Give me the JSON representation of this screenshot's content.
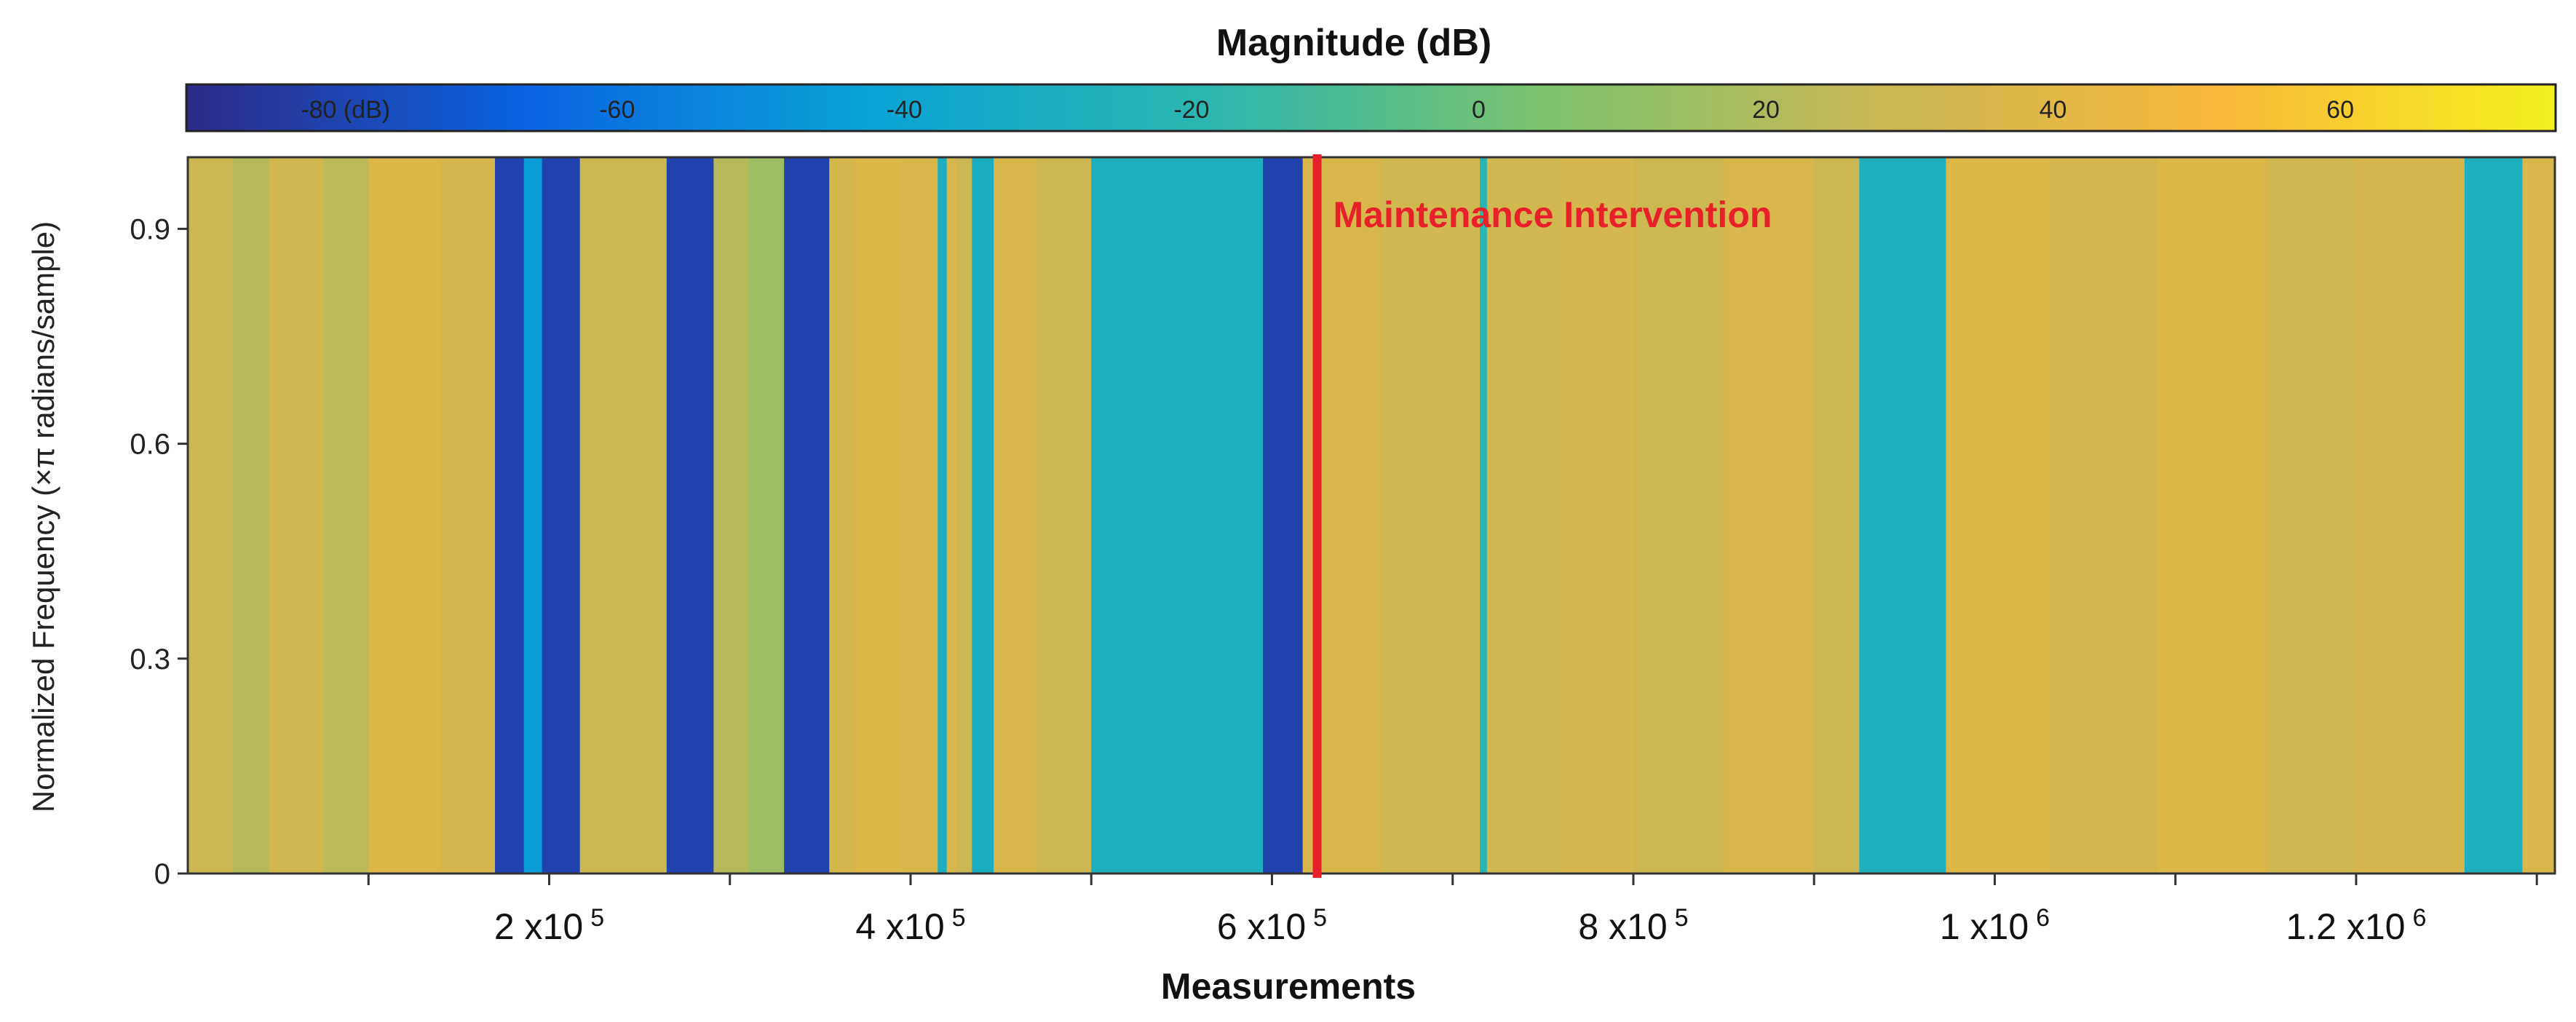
{
  "chart_data": {
    "type": "heatmap",
    "title": "Magnitude (dB)",
    "xlabel": "Measurements",
    "ylabel": "Normalized Frequency (×π radians/sample)",
    "xlim": [
      0,
      1310000
    ],
    "ylim": [
      0,
      1
    ],
    "colorbar": {
      "ticks": [
        {
          "value": -80,
          "label": "-80 (dB)"
        },
        {
          "value": -60,
          "label": "-60"
        },
        {
          "value": -40,
          "label": "-40"
        },
        {
          "value": -20,
          "label": "-20"
        },
        {
          "value": 0,
          "label": "0"
        },
        {
          "value": 20,
          "label": "20"
        },
        {
          "value": 40,
          "label": "40"
        },
        {
          "value": 60,
          "label": "60"
        }
      ],
      "range": [
        -90,
        75
      ],
      "colors": [
        "#2e2a86",
        "#0a63e3",
        "#0aa3d6",
        "#2ab6b0",
        "#7cc36e",
        "#c9b755",
        "#f9b83a",
        "#f5f11e"
      ]
    },
    "yticks": [
      {
        "value": 0,
        "label": "0"
      },
      {
        "value": 0.3,
        "label": "0.3"
      },
      {
        "value": 0.6,
        "label": "0.6"
      },
      {
        "value": 0.9,
        "label": "0.9"
      }
    ],
    "xticks_labeled": [
      {
        "value": 200000,
        "base": "2 x10",
        "exp": "5"
      },
      {
        "value": 400000,
        "base": "4 x10",
        "exp": "5"
      },
      {
        "value": 600000,
        "base": "6 x10",
        "exp": "5"
      },
      {
        "value": 800000,
        "base": "8 x10",
        "exp": "5"
      },
      {
        "value": 1000000,
        "base": "1 x10",
        "exp": "6"
      },
      {
        "value": 1200000,
        "base": "1.2 x10",
        "exp": "6"
      }
    ],
    "xticks_minor": [
      100000,
      300000,
      500000,
      700000,
      900000,
      1100000,
      1300000
    ],
    "bands": [
      {
        "x0": 0,
        "x1": 25000,
        "db": 30
      },
      {
        "x0": 25000,
        "x1": 45000,
        "db": 22
      },
      {
        "x0": 45000,
        "x1": 75000,
        "db": 32
      },
      {
        "x0": 75000,
        "x1": 100000,
        "db": 24
      },
      {
        "x0": 100000,
        "x1": 140000,
        "db": 38
      },
      {
        "x0": 140000,
        "x1": 170000,
        "db": 34
      },
      {
        "x0": 170000,
        "x1": 186000,
        "db": -80
      },
      {
        "x0": 186000,
        "x1": 196000,
        "db": -45
      },
      {
        "x0": 196000,
        "x1": 217000,
        "db": -80
      },
      {
        "x0": 217000,
        "x1": 265000,
        "db": 30
      },
      {
        "x0": 265000,
        "x1": 291000,
        "db": -80
      },
      {
        "x0": 291000,
        "x1": 310000,
        "db": 22
      },
      {
        "x0": 310000,
        "x1": 330000,
        "db": 15
      },
      {
        "x0": 330000,
        "x1": 355000,
        "db": -80
      },
      {
        "x0": 355000,
        "x1": 370000,
        "db": 34
      },
      {
        "x0": 370000,
        "x1": 395000,
        "db": 38
      },
      {
        "x0": 395000,
        "x1": 415000,
        "db": 36
      },
      {
        "x0": 415000,
        "x1": 420000,
        "db": -30
      },
      {
        "x0": 420000,
        "x1": 425000,
        "db": 36
      },
      {
        "x0": 425000,
        "x1": 434000,
        "db": 28
      },
      {
        "x0": 434000,
        "x1": 446000,
        "db": -30
      },
      {
        "x0": 446000,
        "x1": 470000,
        "db": 36
      },
      {
        "x0": 470000,
        "x1": 500000,
        "db": 30
      },
      {
        "x0": 500000,
        "x1": 595000,
        "db": -28
      },
      {
        "x0": 595000,
        "x1": 617000,
        "db": -80
      },
      {
        "x0": 617000,
        "x1": 660000,
        "db": 36
      },
      {
        "x0": 660000,
        "x1": 715000,
        "db": 32
      },
      {
        "x0": 715000,
        "x1": 719000,
        "db": -20
      },
      {
        "x0": 719000,
        "x1": 760000,
        "db": 32
      },
      {
        "x0": 760000,
        "x1": 800000,
        "db": 34
      },
      {
        "x0": 800000,
        "x1": 850000,
        "db": 30
      },
      {
        "x0": 850000,
        "x1": 900000,
        "db": 36
      },
      {
        "x0": 900000,
        "x1": 925000,
        "db": 30
      },
      {
        "x0": 925000,
        "x1": 973000,
        "db": -28
      },
      {
        "x0": 973000,
        "x1": 1030000,
        "db": 38
      },
      {
        "x0": 1030000,
        "x1": 1090000,
        "db": 34
      },
      {
        "x0": 1090000,
        "x1": 1150000,
        "db": 38
      },
      {
        "x0": 1150000,
        "x1": 1200000,
        "db": 32
      },
      {
        "x0": 1200000,
        "x1": 1260000,
        "db": 34
      },
      {
        "x0": 1260000,
        "x1": 1292000,
        "db": -28
      },
      {
        "x0": 1292000,
        "x1": 1310000,
        "db": 36
      }
    ],
    "annotation": {
      "label": "Maintenance Intervention",
      "x": 625000,
      "color": "#e8202a"
    }
  }
}
